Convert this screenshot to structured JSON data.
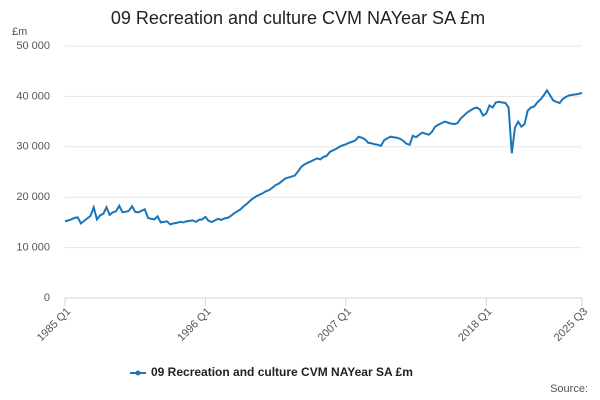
{
  "chart_data": {
    "type": "line",
    "title": "09 Recreation and culture CVM NAYear SA £m",
    "y_label": "£m",
    "source": "Source:",
    "categories": [
      "1985 Q1",
      null,
      null,
      null,
      null,
      null,
      null,
      null,
      null,
      null,
      null,
      null,
      null,
      null,
      null,
      null,
      null,
      null,
      null,
      null,
      null,
      null,
      null,
      null,
      null,
      null,
      null,
      null,
      null,
      null,
      null,
      null,
      null,
      null,
      null,
      null,
      null,
      null,
      null,
      null,
      null,
      null,
      null,
      null,
      "1996 Q1",
      null,
      null,
      null,
      null,
      null,
      null,
      null,
      null,
      null,
      null,
      null,
      null,
      null,
      null,
      null,
      null,
      null,
      null,
      null,
      null,
      null,
      null,
      null,
      null,
      null,
      null,
      null,
      null,
      null,
      null,
      null,
      null,
      null,
      null,
      null,
      null,
      null,
      null,
      null,
      null,
      null,
      null,
      null,
      "2007 Q1",
      null,
      null,
      null,
      null,
      null,
      null,
      null,
      null,
      null,
      null,
      null,
      null,
      null,
      null,
      null,
      null,
      null,
      null,
      null,
      null,
      null,
      null,
      null,
      null,
      null,
      null,
      null,
      null,
      null,
      null,
      null,
      null,
      null,
      null,
      null,
      null,
      null,
      null,
      null,
      null,
      null,
      null,
      null,
      "2018 Q1",
      null,
      null,
      null,
      null,
      null,
      null,
      null,
      null,
      null,
      null,
      null,
      null,
      null,
      null,
      null,
      null,
      null,
      null,
      null,
      null,
      null,
      null,
      null,
      null,
      null,
      null,
      null,
      null,
      null,
      "2025 Q3"
    ],
    "series": [
      {
        "name": "09 Recreation and culture CVM NAYear SA £m",
        "color": "#1a76bb",
        "values": [
          15200,
          15400,
          15600,
          15900,
          16000,
          14800,
          15300,
          15800,
          16300,
          18000,
          15600,
          16400,
          16700,
          18000,
          16500,
          17000,
          17200,
          18300,
          17000,
          17100,
          17300,
          18200,
          17100,
          17000,
          17300,
          17600,
          15900,
          15700,
          15600,
          16200,
          15000,
          15100,
          15200,
          14600,
          14800,
          14900,
          15100,
          15000,
          15200,
          15300,
          15400,
          15100,
          15500,
          15600,
          16100,
          15300,
          15100,
          15400,
          15700,
          15500,
          15800,
          15900,
          16300,
          16800,
          17200,
          17600,
          18200,
          18700,
          19300,
          19800,
          20200,
          20500,
          20800,
          21200,
          21400,
          21900,
          22400,
          22700,
          23200,
          23700,
          23900,
          24100,
          24300,
          25100,
          26000,
          26500,
          26800,
          27100,
          27400,
          27700,
          27500,
          28000,
          28200,
          29000,
          29300,
          29600,
          30000,
          30300,
          30500,
          30800,
          31000,
          31300,
          32000,
          31800,
          31500,
          30800,
          30700,
          30500,
          30400,
          30200,
          31300,
          31700,
          32000,
          31900,
          31800,
          31600,
          31200,
          30600,
          30400,
          32200,
          31900,
          32400,
          32800,
          32600,
          32400,
          33000,
          34000,
          34400,
          34700,
          35000,
          34800,
          34600,
          34500,
          34700,
          35600,
          36200,
          36800,
          37200,
          37600,
          37800,
          37400,
          36200,
          36600,
          38200,
          37800,
          38800,
          38900,
          38800,
          38700,
          37800,
          28700,
          33800,
          35000,
          34000,
          34500,
          37200,
          37800,
          38000,
          38800,
          39400,
          40200,
          41200,
          40200,
          39200,
          38900,
          38700,
          39500,
          39900,
          40200,
          40300,
          40400,
          40500,
          40700
        ]
      }
    ],
    "ylim": [
      0,
      50000
    ],
    "yticks": [
      0,
      {
        "value": 10000,
        "label": "10 000"
      },
      {
        "value": 20000,
        "label": "20 000"
      },
      {
        "value": 30000,
        "label": "30 000"
      },
      {
        "value": 40000,
        "label": "40 000"
      },
      {
        "value": 50000,
        "label": "50 000"
      }
    ],
    "grid": true
  }
}
